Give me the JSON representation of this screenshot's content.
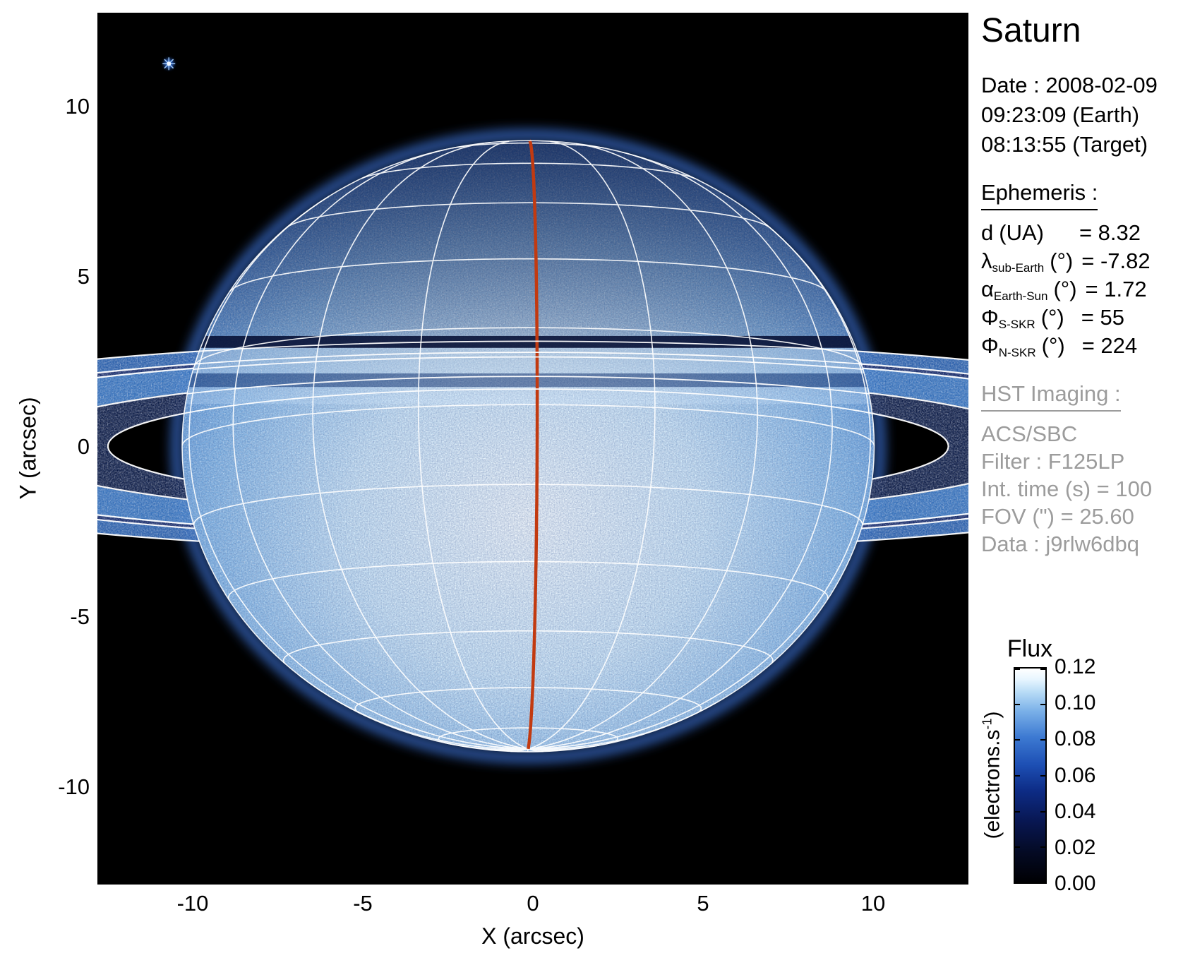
{
  "title": "Saturn",
  "date": {
    "lines": [
      "Date : 2008-02-09",
      "09:23:09 (Earth)",
      "08:13:55 (Target)"
    ]
  },
  "ephemeris": {
    "header": "Ephemeris :",
    "rows": [
      {
        "symbol": "d",
        "sub": "",
        "unit": "(UA)",
        "value": "= 8.32"
      },
      {
        "symbol": "λ",
        "sub": "sub-Earth",
        "unit": "(°)",
        "value": "= -7.82"
      },
      {
        "symbol": "α",
        "sub": "Earth-Sun",
        "unit": "(°)",
        "value": "= 1.72"
      },
      {
        "symbol": "Φ",
        "sub": "S-SKR",
        "unit": "(°)",
        "value": "= 55"
      },
      {
        "symbol": "Φ",
        "sub": "N-SKR",
        "unit": "(°)",
        "value": "= 224"
      }
    ]
  },
  "hst": {
    "header": "HST Imaging :",
    "rows": [
      "ACS/SBC",
      "Filter : F125LP",
      "Int. time (s) = 100",
      "FOV (\") = 25.60",
      "Data : j9rlw6dbq"
    ],
    "text_color": "#9c9c9c"
  },
  "chart_data": {
    "type": "heatmap",
    "title": "Saturn",
    "xlabel": "X (arcsec)",
    "ylabel": "Y (arcsec)",
    "xlim": [
      -12.8,
      12.8
    ],
    "ylim": [
      -12.8,
      12.8
    ],
    "xtick_values": [
      -10,
      -5,
      0,
      5,
      10
    ],
    "xtick_labels": [
      "-10",
      "-5",
      "0",
      "5",
      "10"
    ],
    "ytick_values": [
      10,
      5,
      0,
      -5,
      -10
    ],
    "ytick_labels": [
      "10",
      "5",
      "0",
      "-5",
      "-10"
    ],
    "grid": false,
    "colorbar": {
      "title": "Flux",
      "unit_prefix": "(electrons.s",
      "unit_sup": "-1",
      "unit_suffix": ")",
      "range": [
        0.0,
        0.12
      ],
      "tick_values": [
        0.12,
        0.1,
        0.08,
        0.06,
        0.04,
        0.02,
        0.0
      ],
      "tick_labels": [
        "0.12",
        "0.10",
        "0.08",
        "0.06",
        "0.04",
        "0.02",
        "0.00"
      ],
      "stops": [
        [
          0,
          "#000003"
        ],
        [
          0.14,
          "#040a24"
        ],
        [
          0.28,
          "#081650"
        ],
        [
          0.43,
          "#0d2c86"
        ],
        [
          0.55,
          "#1d4fb4"
        ],
        [
          0.68,
          "#3d7ad2"
        ],
        [
          0.8,
          "#7ab0e8"
        ],
        [
          0.89,
          "#b8dcf6"
        ],
        [
          0.95,
          "#e8f6ff"
        ],
        [
          1,
          "#ffffff"
        ]
      ]
    },
    "scene": {
      "background": "#000000",
      "planet": {
        "center_arcsec": [
          -0.14,
          0.06
        ],
        "equatorial_radius_arcsec": 10.17,
        "polar_radius_projected_arcsec": 8.98,
        "sub_observer_lat_deg": -7.82,
        "sub_observer_lon_offset_deg": 1.5,
        "grid_lat_step_deg": 15,
        "grid_lon_step_deg": 20,
        "grid_color": "#ffffff",
        "central_meridian_color": "#c23a10"
      },
      "rings": {
        "tilt_ratio": 0.136,
        "outline_color": "#ffffff",
        "edges_arcsec": [
          12.35,
          15.26,
          19.5,
          20.29,
          22.69
        ],
        "edge_names": [
          "C inner",
          "B inner",
          "B outer",
          "A inner",
          "A outer"
        ],
        "bands": [
          {
            "name": "C ring",
            "inner": 12.35,
            "outer": 15.26,
            "fill": "#0a173f",
            "opacity": 0.92
          },
          {
            "name": "B ring",
            "inner": 15.26,
            "outer": 19.5,
            "fill": "#3c80cf",
            "opacity": 0.95
          },
          {
            "name": "Cassini division",
            "inner": 19.5,
            "outer": 20.29,
            "fill": "#12266b",
            "opacity": 0.92
          },
          {
            "name": "A ring",
            "inner": 20.29,
            "outer": 22.69,
            "fill": "#2f6dc0",
            "opacity": 0.92
          }
        ]
      },
      "disk_strips": [
        {
          "y_top_arcsec": 3.3,
          "y_bot_arcsec": 2.95,
          "fill": "#060f33",
          "opacity": 0.88
        },
        {
          "y_top_arcsec": 2.95,
          "y_bot_arcsec": 2.2,
          "fill": "#d7ecff",
          "opacity": 0.32
        },
        {
          "y_top_arcsec": 2.2,
          "y_bot_arcsec": 1.8,
          "fill": "#10306e",
          "opacity": 0.48
        },
        {
          "y_top_arcsec": 1.8,
          "y_bot_arcsec": 1.3,
          "fill": "#d7ecff",
          "opacity": 0.24
        }
      ],
      "satellite": {
        "x_arcsec": -10.7,
        "y_arcsec": 11.3,
        "core_color": "#eef6ff",
        "glow_color": "#2e6cd8"
      }
    }
  }
}
